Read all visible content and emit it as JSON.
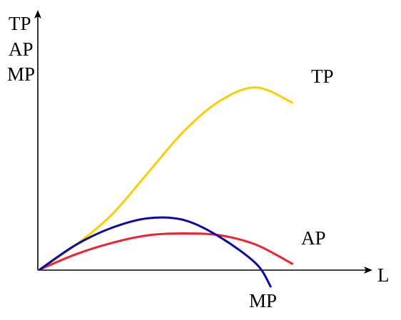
{
  "chart_data": {
    "type": "line",
    "title": "",
    "grid": false,
    "ylabel_lines": [
      "TP",
      "AP",
      "MP"
    ],
    "xlabel": "L",
    "xlim": [
      0,
      1
    ],
    "ylim": [
      -0.1,
      1.0
    ],
    "series": [
      {
        "name": "TP",
        "color": "#ffcc00",
        "x": [
          0.0,
          0.125,
          0.25,
          0.375,
          0.5,
          0.625,
          0.75,
          0.875
        ],
        "y": [
          0.0,
          0.13,
          0.29,
          0.51,
          0.73,
          0.89,
          0.96,
          0.88
        ]
      },
      {
        "name": "AP",
        "color": "#ee2233",
        "x": [
          0.0,
          0.125,
          0.25,
          0.375,
          0.5,
          0.625,
          0.75,
          0.875
        ],
        "y": [
          0.0,
          0.08,
          0.14,
          0.18,
          0.19,
          0.18,
          0.13,
          0.03
        ]
      },
      {
        "name": "MP",
        "color": "#0a0aa0",
        "x": [
          0.0,
          0.125,
          0.25,
          0.375,
          0.5,
          0.625,
          0.75,
          0.8
        ],
        "y": [
          0.0,
          0.13,
          0.22,
          0.27,
          0.26,
          0.17,
          0.03,
          -0.09
        ]
      }
    ]
  }
}
